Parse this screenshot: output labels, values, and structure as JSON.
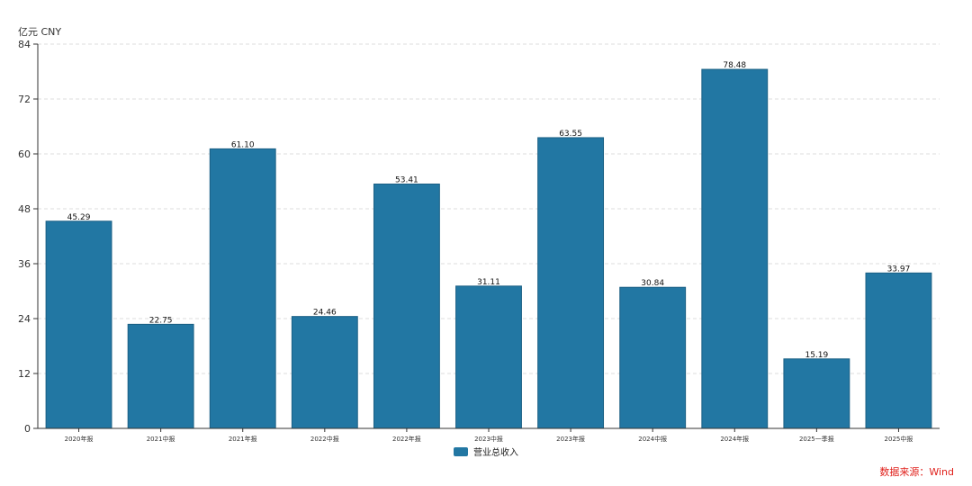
{
  "unit_label": "亿元  CNY",
  "source": "数据来源：Wind",
  "colors": {
    "bar": "#2277a3",
    "axis": "#333333",
    "grid": "#dddddd",
    "source": "#e0201b"
  },
  "chart_data": {
    "type": "bar",
    "categories": [
      "2020年报",
      "2021中报",
      "2021年报",
      "2022中报",
      "2022年报",
      "2023中报",
      "2023年报",
      "2024中报",
      "2024年报",
      "2025一季报",
      "2025中报"
    ],
    "series": [
      {
        "name": "营业总收入",
        "values": [
          45.29,
          22.75,
          61.1,
          24.46,
          53.41,
          31.11,
          63.55,
          30.84,
          78.48,
          15.19,
          33.97
        ],
        "value_labels": [
          "45.29",
          "22.75",
          "61.10",
          "24.46",
          "53.41",
          "31.11",
          "63.55",
          "30.84",
          "78.48",
          "15.19",
          "33.97"
        ]
      }
    ],
    "ylim": [
      0,
      84
    ],
    "yticks": [
      "0",
      "12",
      "24",
      "36",
      "48",
      "60",
      "72",
      "84"
    ],
    "grid": true,
    "legend_position": "bottom-center"
  }
}
